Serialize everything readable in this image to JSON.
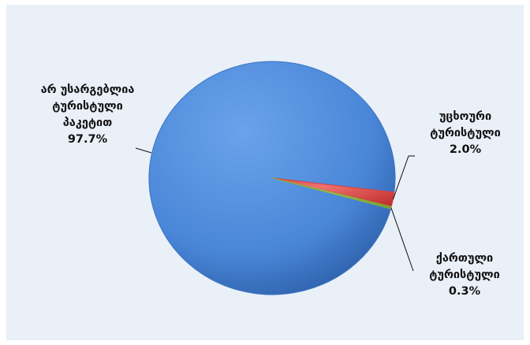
{
  "chart_data": {
    "type": "pie",
    "slices": [
      {
        "label_lines": [
          "არ უსარგებლია",
          "ტურისტული",
          "პაკეტით"
        ],
        "value": 97.7,
        "value_label": "97.7%",
        "color": "#4a86d8"
      },
      {
        "label_lines": [
          "უცხოური",
          "ტურისტული"
        ],
        "value": 2.0,
        "value_label": "2.0%",
        "color": "#d9413f"
      },
      {
        "label_lines": [
          "ქართული",
          "ტურისტული"
        ],
        "value": 0.3,
        "value_label": "0.3%",
        "color": "#8cb53c"
      }
    ],
    "title": "",
    "legend": "none",
    "style": "3d-beveled"
  }
}
